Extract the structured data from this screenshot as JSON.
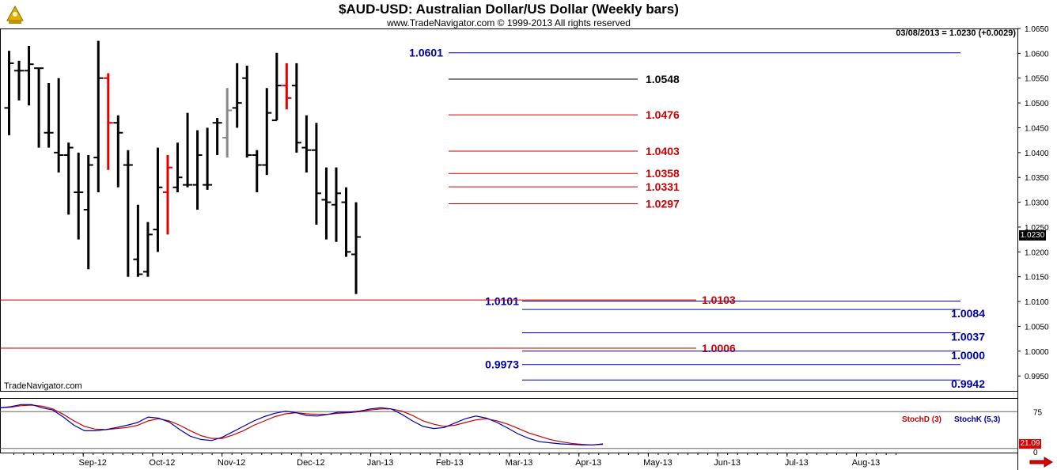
{
  "header": {
    "title": "$AUD-USD:  Australian Dollar/US Dollar  (Weekly bars)",
    "subtitle": "www.TradeNavigator.com © 1999-2013 All rights reserved",
    "readout": "03/08/2013 = 1.0230 (+0.0029)",
    "logo_text": "TradeNavigator.com"
  },
  "colors": {
    "bar_default": "#000000",
    "bar_red": "#e00000",
    "bar_gray": "#888888",
    "blue_level": "#0000aa",
    "red_level": "#cc0000",
    "stoch_k": "#0000aa",
    "stoch_d": "#cc0000",
    "last_price_box": "#000000"
  },
  "chart_data": {
    "type": "ohlc",
    "title": "$AUD-USD:  Australian Dollar/US Dollar  (Weekly bars)",
    "price_axis": {
      "ylim": [
        0.992,
        1.065
      ],
      "ticks": [
        "1.0650",
        "1.0600",
        "1.0550",
        "1.0500",
        "1.0450",
        "1.0400",
        "1.0350",
        "1.0300",
        "1.0250",
        "1.0200",
        "1.0150",
        "1.0100",
        "1.0050",
        "1.0000",
        "0.9950"
      ],
      "last_price_label": "1.0230"
    },
    "x_axis": {
      "month_labels": [
        "Sep-12",
        "Oct-12",
        "Nov-12",
        "Dec-12",
        "Jan-13",
        "Feb-13",
        "Mar-13",
        "Apr-13",
        "May-13",
        "Jun-13",
        "Jul-13",
        "Aug-13"
      ],
      "month_positions_week_index": [
        7,
        14,
        21,
        29,
        36,
        43,
        50,
        57,
        64,
        71,
        78,
        85
      ]
    },
    "bars": [
      {
        "o": 1.049,
        "h": 1.0605,
        "l": 1.0435,
        "c": 1.058,
        "color": "black"
      },
      {
        "o": 1.0565,
        "h": 1.0585,
        "l": 1.0505,
        "c": 1.0565,
        "color": "black"
      },
      {
        "o": 1.0565,
        "h": 1.0615,
        "l": 1.0495,
        "c": 1.0578,
        "color": "black"
      },
      {
        "o": 1.057,
        "h": 1.057,
        "l": 1.041,
        "c": 1.057,
        "color": "black"
      },
      {
        "o": 1.044,
        "h": 1.054,
        "l": 1.041,
        "c": 1.044,
        "color": "black"
      },
      {
        "o": 1.04,
        "h": 1.055,
        "l": 1.036,
        "c": 1.0395,
        "color": "black"
      },
      {
        "o": 1.0395,
        "h": 1.042,
        "l": 1.0275,
        "c": 1.041,
        "color": "black"
      },
      {
        "o": 1.032,
        "h": 1.04,
        "l": 1.0225,
        "c": 1.032,
        "color": "black"
      },
      {
        "o": 1.0285,
        "h": 1.0395,
        "l": 1.0165,
        "c": 1.0375,
        "color": "black"
      },
      {
        "o": 1.039,
        "h": 1.0625,
        "l": 1.032,
        "c": 1.055,
        "color": "black"
      },
      {
        "o": 1.055,
        "h": 1.056,
        "l": 1.0365,
        "c": 1.046,
        "color": "red"
      },
      {
        "o": 1.046,
        "h": 1.0475,
        "l": 1.033,
        "c": 1.044,
        "color": "black"
      },
      {
        "o": 1.0375,
        "h": 1.0405,
        "l": 1.015,
        "c": 1.0375,
        "color": "black"
      },
      {
        "o": 1.0185,
        "h": 1.0295,
        "l": 1.015,
        "c": 1.0155,
        "color": "black"
      },
      {
        "o": 1.016,
        "h": 1.026,
        "l": 1.015,
        "c": 1.0235,
        "color": "black"
      },
      {
        "o": 1.0245,
        "h": 1.041,
        "l": 1.02,
        "c": 1.033,
        "color": "black"
      },
      {
        "o": 1.032,
        "h": 1.0395,
        "l": 1.0235,
        "c": 1.037,
        "color": "red"
      },
      {
        "o": 1.033,
        "h": 1.042,
        "l": 1.032,
        "c": 1.035,
        "color": "black"
      },
      {
        "o": 1.0335,
        "h": 1.048,
        "l": 1.033,
        "c": 1.0335,
        "color": "black"
      },
      {
        "o": 1.0335,
        "h": 1.0445,
        "l": 1.0285,
        "c": 1.0395,
        "color": "black"
      },
      {
        "o": 1.0335,
        "h": 1.045,
        "l": 1.0325,
        "c": 1.0335,
        "color": "black"
      },
      {
        "o": 1.046,
        "h": 1.047,
        "l": 1.0395,
        "c": 1.046,
        "color": "black"
      },
      {
        "o": 1.043,
        "h": 1.053,
        "l": 1.039,
        "c": 1.0485,
        "color": "gray"
      },
      {
        "o": 1.049,
        "h": 1.058,
        "l": 1.045,
        "c": 1.05,
        "color": "black"
      },
      {
        "o": 1.055,
        "h": 1.0575,
        "l": 1.039,
        "c": 1.0395,
        "color": "black"
      },
      {
        "o": 1.0395,
        "h": 1.0405,
        "l": 1.032,
        "c": 1.0375,
        "color": "black"
      },
      {
        "o": 1.0375,
        "h": 1.053,
        "l": 1.0355,
        "c": 1.048,
        "color": "black"
      },
      {
        "o": 1.0465,
        "h": 1.0601,
        "l": 1.0465,
        "c": 1.0535,
        "color": "black"
      },
      {
        "o": 1.0535,
        "h": 1.058,
        "l": 1.0487,
        "c": 1.051,
        "color": "red"
      },
      {
        "o": 1.0535,
        "h": 1.058,
        "l": 1.04,
        "c": 1.042,
        "color": "black"
      },
      {
        "o": 1.041,
        "h": 1.0475,
        "l": 1.036,
        "c": 1.0405,
        "color": "black"
      },
      {
        "o": 1.0405,
        "h": 1.046,
        "l": 1.0255,
        "c": 1.0318,
        "color": "black"
      },
      {
        "o": 1.0305,
        "h": 1.037,
        "l": 1.0225,
        "c": 1.03,
        "color": "black"
      },
      {
        "o": 1.0295,
        "h": 1.037,
        "l": 1.022,
        "c": 1.0318,
        "color": "black"
      },
      {
        "o": 1.03,
        "h": 1.033,
        "l": 1.019,
        "c": 1.02,
        "color": "black"
      },
      {
        "o": 1.0195,
        "h": 1.03,
        "l": 1.0115,
        "c": 1.023,
        "color": "black"
      }
    ],
    "bar_week_index_start": 0,
    "levels": [
      {
        "label": "1.0601",
        "value": 1.0601,
        "color": "blue",
        "label_side": "left"
      },
      {
        "label": "1.0548",
        "value": 1.0548,
        "color": "black",
        "label_side": "right"
      },
      {
        "label": "1.0476",
        "value": 1.0476,
        "color": "red",
        "label_side": "right"
      },
      {
        "label": "1.0403",
        "value": 1.0403,
        "color": "red",
        "label_side": "right"
      },
      {
        "label": "1.0358",
        "value": 1.0358,
        "color": "red",
        "label_side": "right"
      },
      {
        "label": "1.0331",
        "value": 1.0331,
        "color": "red",
        "label_side": "right"
      },
      {
        "label": "1.0297",
        "value": 1.0297,
        "color": "red",
        "label_side": "right"
      },
      {
        "label": "1.0101",
        "value": 1.0101,
        "color": "blue",
        "label_side": "left"
      },
      {
        "label": "1.0103",
        "value": 1.0103,
        "color": "red",
        "label_side": "right"
      },
      {
        "label": "1.0084",
        "value": 1.0084,
        "color": "blue",
        "label_side": "far-right"
      },
      {
        "label": "1.0037",
        "value": 1.0037,
        "color": "blue",
        "label_side": "far-right"
      },
      {
        "label": "1.0006",
        "value": 1.0006,
        "color": "red",
        "label_side": "right"
      },
      {
        "label": "1.0000",
        "value": 1.0,
        "color": "blue",
        "label_side": "far-right"
      },
      {
        "label": "0.9973",
        "value": 0.9973,
        "color": "blue",
        "label_side": "left"
      },
      {
        "label": "0.9942",
        "value": 0.9942,
        "color": "blue",
        "label_side": "far-right"
      }
    ],
    "stochastic": {
      "d_label": "StochD (3)",
      "k_label": "StochK (5,3)",
      "ylim": [
        0,
        100
      ],
      "ticks": [
        "75",
        "0"
      ],
      "last_value_label": "21.09",
      "k": [
        82,
        84,
        88,
        88,
        82,
        78,
        65,
        50,
        40,
        40,
        42,
        46,
        50,
        55,
        65,
        63,
        56,
        42,
        30,
        24,
        22,
        28,
        38,
        48,
        58,
        66,
        72,
        76,
        73,
        68,
        67,
        70,
        74,
        74,
        76,
        80,
        82,
        80,
        70,
        58,
        48,
        44,
        46,
        54,
        62,
        67,
        63,
        55,
        45,
        34,
        26,
        20,
        18,
        16,
        15,
        14,
        14,
        16
      ],
      "d": [
        82,
        83,
        86,
        87,
        85,
        80,
        70,
        58,
        48,
        43,
        42,
        44,
        46,
        50,
        58,
        62,
        58,
        50,
        40,
        31,
        26,
        26,
        32,
        40,
        50,
        58,
        66,
        71,
        73,
        71,
        70,
        70,
        72,
        73,
        75,
        78,
        80,
        80,
        76,
        68,
        58,
        52,
        48,
        50,
        55,
        60,
        62,
        58,
        52,
        44,
        36,
        30,
        24,
        20,
        17,
        15,
        14,
        15
      ]
    }
  }
}
